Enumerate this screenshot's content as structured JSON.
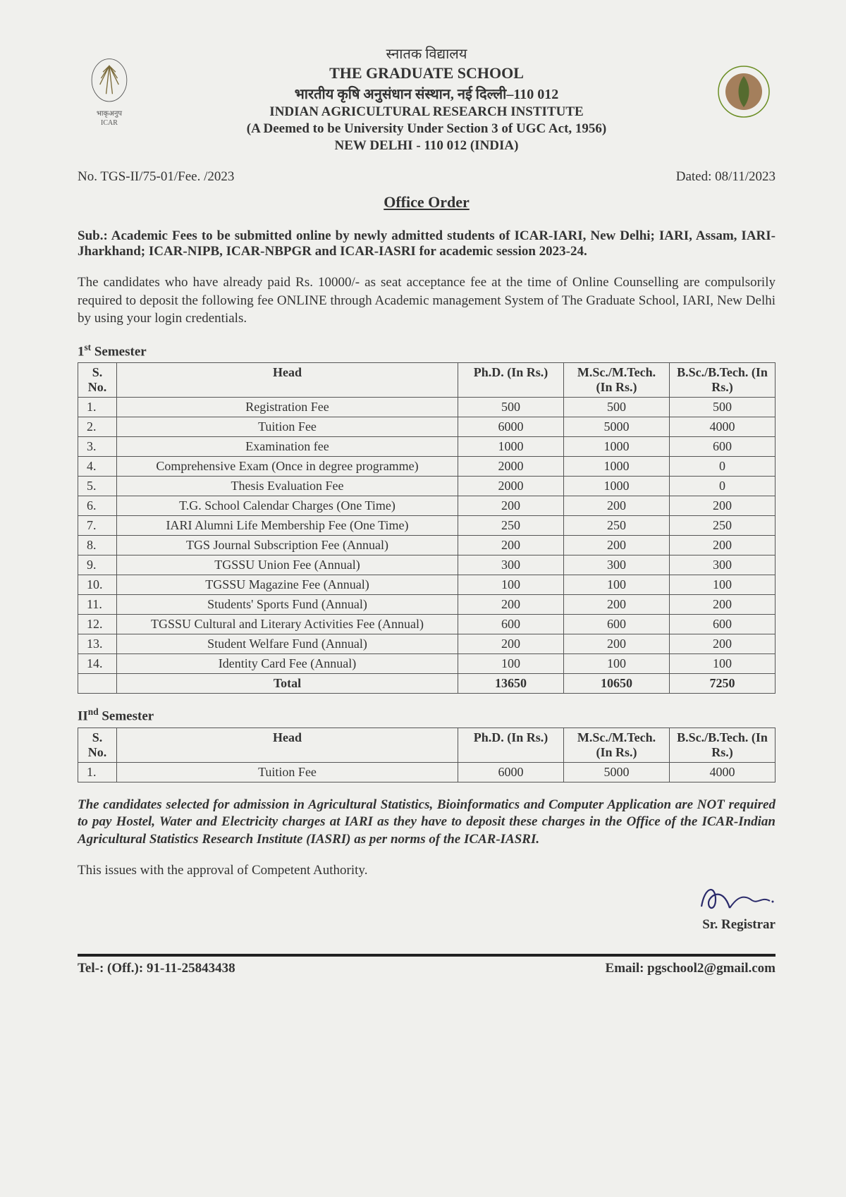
{
  "header": {
    "hindi_top": "स्नातक विद्यालय",
    "school": "THE GRADUATE SCHOOL",
    "hindi_inst": "भारतीय कृषि अनुसंधान संस्थान, नई दिल्ली–110 012",
    "inst": "INDIAN AGRICULTURAL RESEARCH INSTITUTE",
    "deemed": "(A Deemed to be University Under Section 3 of UGC Act, 1956)",
    "address": "NEW DELHI - 110 012 (INDIA)",
    "icar_hindi": "भाकृअनुप",
    "icar_en": "ICAR"
  },
  "meta": {
    "ref_no": "No. TGS-II/75-01/Fee. /2023",
    "dated": "Dated: 08/11/2023"
  },
  "office_order": "Office Order",
  "subject": {
    "label": "Sub.: ",
    "text": "Academic Fees to be submitted online by newly admitted students of ICAR-IARI, New Delhi; IARI, Assam, IARI-Jharkhand; ICAR-NIPB, ICAR-NBPGR and ICAR-IASRI for academic session 2023-24."
  },
  "intro": "The candidates who have already paid Rs. 10000/- as seat acceptance fee at the time of Online Counselling are compulsorily required to deposit the following fee ONLINE through Academic management System of The Graduate School, IARI, New Delhi by using your login credentials.",
  "tables": {
    "headers": {
      "sno": "S. No.",
      "head": "Head",
      "phd": "Ph.D. (In Rs.)",
      "msc": "M.Sc./M.Tech. (In Rs.)",
      "bsc": "B.Sc./B.Tech. (In Rs.)"
    },
    "sem1_label_a": "1",
    "sem1_label_b": "st",
    "sem1_label_c": " Semester",
    "sem1_rows": [
      {
        "sno": "1.",
        "head": "Registration Fee",
        "phd": "500",
        "msc": "500",
        "bsc": "500"
      },
      {
        "sno": "2.",
        "head": "Tuition Fee",
        "phd": "6000",
        "msc": "5000",
        "bsc": "4000"
      },
      {
        "sno": "3.",
        "head": "Examination fee",
        "phd": "1000",
        "msc": "1000",
        "bsc": "600"
      },
      {
        "sno": "4.",
        "head": "Comprehensive Exam (Once in degree programme)",
        "phd": "2000",
        "msc": "1000",
        "bsc": "0"
      },
      {
        "sno": "5.",
        "head": "Thesis Evaluation Fee",
        "phd": "2000",
        "msc": "1000",
        "bsc": "0"
      },
      {
        "sno": "6.",
        "head": "T.G. School Calendar Charges (One Time)",
        "phd": "200",
        "msc": "200",
        "bsc": "200"
      },
      {
        "sno": "7.",
        "head": "IARI Alumni Life Membership Fee (One Time)",
        "phd": "250",
        "msc": "250",
        "bsc": "250"
      },
      {
        "sno": "8.",
        "head": "TGS Journal Subscription Fee (Annual)",
        "phd": "200",
        "msc": "200",
        "bsc": "200"
      },
      {
        "sno": "9.",
        "head": "TGSSU Union Fee (Annual)",
        "phd": "300",
        "msc": "300",
        "bsc": "300"
      },
      {
        "sno": "10.",
        "head": "TGSSU Magazine Fee (Annual)",
        "phd": "100",
        "msc": "100",
        "bsc": "100"
      },
      {
        "sno": "11.",
        "head": "Students' Sports Fund (Annual)",
        "phd": "200",
        "msc": "200",
        "bsc": "200"
      },
      {
        "sno": "12.",
        "head": "TGSSU Cultural and Literary Activities Fee (Annual)",
        "phd": "600",
        "msc": "600",
        "bsc": "600"
      },
      {
        "sno": "13.",
        "head": "Student Welfare Fund (Annual)",
        "phd": "200",
        "msc": "200",
        "bsc": "200"
      },
      {
        "sno": "14.",
        "head": "Identity Card Fee (Annual)",
        "phd": "100",
        "msc": "100",
        "bsc": "100"
      }
    ],
    "sem1_total": {
      "label": "Total",
      "phd": "13650",
      "msc": "10650",
      "bsc": "7250"
    },
    "sem2_label_a": "II",
    "sem2_label_b": "nd",
    "sem2_label_c": " Semester",
    "sem2_rows": [
      {
        "sno": "1.",
        "head": "Tuition Fee",
        "phd": "6000",
        "msc": "5000",
        "bsc": "4000"
      }
    ]
  },
  "note": "The candidates selected for admission in Agricultural Statistics, Bioinformatics and Computer Application are NOT required to pay Hostel, Water and Electricity charges at IARI as they have to deposit these charges in the Office of the ICAR-Indian Agricultural Statistics Research Institute (IASRI) as per norms of the ICAR-IASRI.",
  "approval": "This issues with the approval of Competent Authority.",
  "signatory": "Sr. Registrar",
  "footer": {
    "tel": "Tel-: (Off.): 91-11-25843438",
    "email": "Email: pgschool2@gmail.com"
  }
}
